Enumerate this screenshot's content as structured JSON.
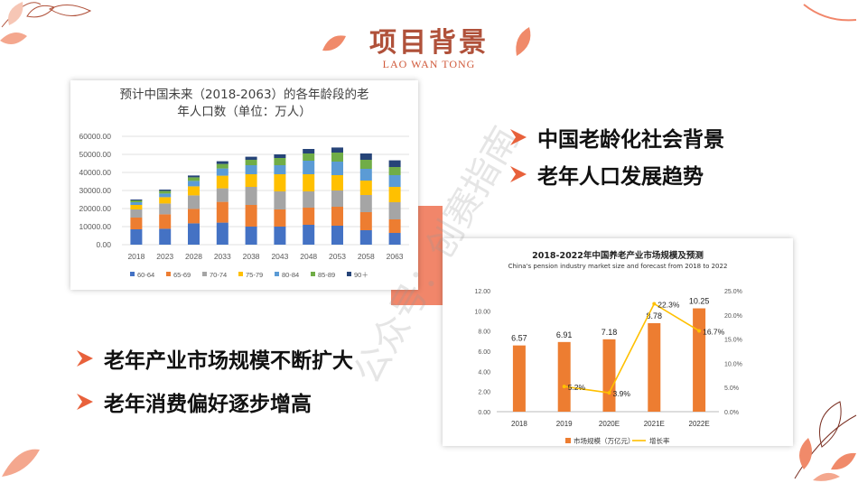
{
  "slide": {
    "title": "项目背景",
    "subtitle": "LAO WAN TONG",
    "watermark": "公众号：创赛指南",
    "colors": {
      "accent": "#f1866a",
      "title": "#b0513a"
    }
  },
  "bullets_top": [
    "中国老龄化社会背景",
    "老年人口发展趋势"
  ],
  "bullets_bottom": [
    "老年产业市场规模不断扩大",
    "老年消费偏好逐步增高"
  ],
  "chart_data": [
    {
      "type": "bar",
      "stacked": true,
      "title": "预计中国未来（2018-2063）的各年龄段的老年人口数（单位：万人）",
      "title_lines": [
        "预计中国未来（2018-2063）的各年龄段的老",
        "年人口数（单位：万人）"
      ],
      "categories": [
        "2018",
        "2023",
        "2028",
        "2033",
        "2038",
        "2043",
        "2048",
        "2053",
        "2058",
        "2063"
      ],
      "y_ticks": [
        "0.00",
        "10000.00",
        "20000.00",
        "30000.00",
        "40000.00",
        "50000.00",
        "60000.00"
      ],
      "ylim": [
        0,
        60000
      ],
      "legend_position": "bottom",
      "series": [
        {
          "name": "60-64",
          "color": "#4472c4",
          "values": [
            8500,
            8800,
            11800,
            12200,
            10000,
            10000,
            11000,
            10500,
            8000,
            6500
          ]
        },
        {
          "name": "65-69",
          "color": "#ed7d31",
          "values": [
            6500,
            8000,
            8000,
            11500,
            12000,
            9500,
            9500,
            10500,
            10000,
            7500
          ]
        },
        {
          "name": "70-74",
          "color": "#a5a5a5",
          "values": [
            4500,
            6000,
            7500,
            7500,
            10000,
            10000,
            9000,
            9000,
            9500,
            9500
          ]
        },
        {
          "name": "75-79",
          "color": "#ffc000",
          "values": [
            2500,
            3500,
            5000,
            7000,
            7000,
            9500,
            9500,
            8500,
            8000,
            8500
          ]
        },
        {
          "name": "80-84",
          "color": "#5b9bd5",
          "values": [
            1500,
            2000,
            3000,
            4000,
            5000,
            5000,
            7500,
            7500,
            6500,
            6500
          ]
        },
        {
          "name": "85-89",
          "color": "#70ad47",
          "values": [
            1000,
            1500,
            2000,
            2500,
            3000,
            4000,
            4000,
            5000,
            5000,
            4500
          ]
        },
        {
          "name": "90＋",
          "color": "#264478",
          "values": [
            500,
            700,
            1000,
            1500,
            1700,
            2000,
            2500,
            2800,
            3500,
            3700
          ]
        }
      ]
    },
    {
      "type": "bar",
      "title": "2018-2022年中国养老产业市场规模及预测",
      "subtitle": "China's pension industry market size and forecast from 2018 to 2022",
      "categories": [
        "2018",
        "2019",
        "2020E",
        "2021E",
        "2022E"
      ],
      "y_ticks": [
        "0.00",
        "2.00",
        "4.00",
        "6.00",
        "8.00",
        "10.00",
        "12.00"
      ],
      "y2_ticks": [
        "0.0%",
        "5.0%",
        "10.0%",
        "15.0%",
        "20.0%",
        "25.0%"
      ],
      "ylim": [
        0,
        12
      ],
      "y2lim": [
        0,
        25
      ],
      "legend_position": "bottom",
      "series": [
        {
          "name": "市场规模（万亿元）",
          "type": "bar",
          "color": "#ed7d31",
          "values": [
            6.57,
            6.91,
            7.18,
            8.78,
            10.25
          ],
          "labels": [
            "6.57",
            "6.91",
            "7.18",
            "8.78",
            "10.25"
          ]
        },
        {
          "name": "增长率",
          "type": "line",
          "color": "#ffc000",
          "axis": "right",
          "x": [
            "2019",
            "2020E",
            "2021E",
            "2022E"
          ],
          "values": [
            5.2,
            3.9,
            22.3,
            16.7
          ],
          "labels": [
            "5.2%",
            "3.9%",
            "22.3%",
            "16.7%"
          ]
        }
      ]
    }
  ]
}
